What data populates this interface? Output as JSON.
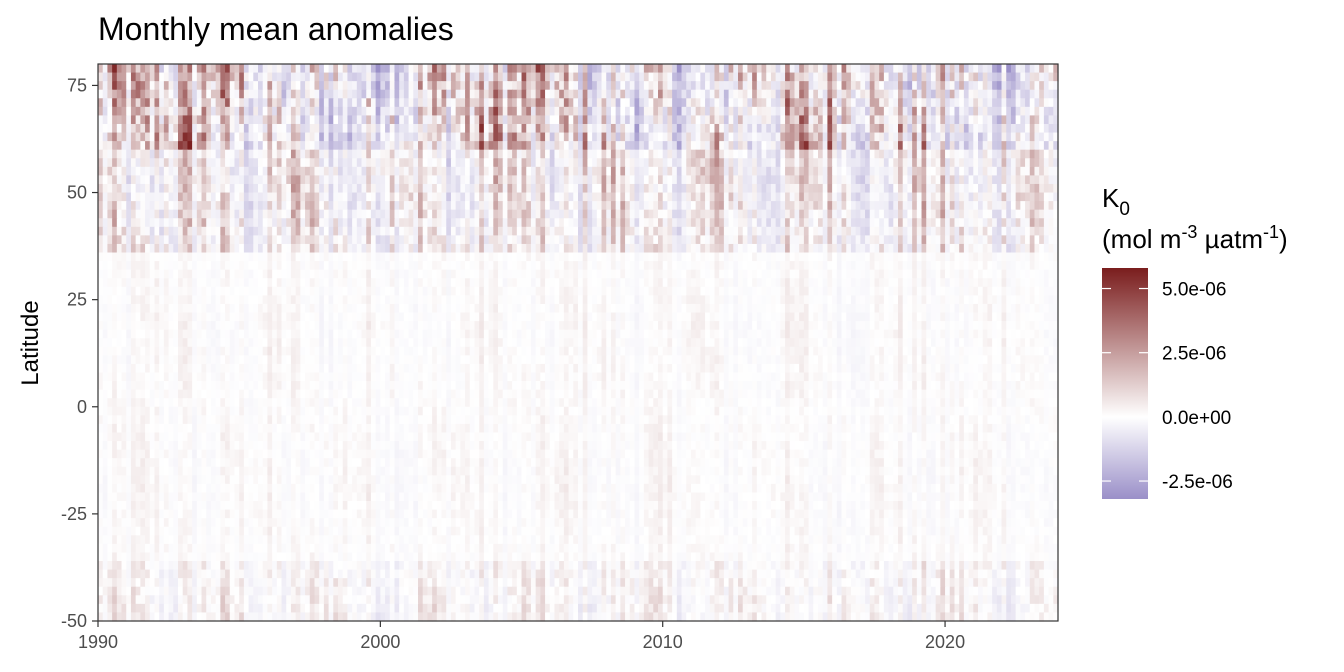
{
  "chart_data": {
    "type": "heatmap",
    "title": "Monthly mean anomalies",
    "xlabel": "",
    "ylabel": "Latitude",
    "xlim": [
      1990,
      2024
    ],
    "ylim": [
      -50,
      80
    ],
    "x_ticks": [
      "1990",
      "2000",
      "2010",
      "2020"
    ],
    "y_ticks": [
      "75",
      "50",
      "25",
      "0",
      "-25",
      "-50"
    ],
    "grid": false,
    "colorbar": {
      "title_main": "K",
      "title_sub": "0",
      "unit_open": "(mol m",
      "unit_exp1": "-3",
      "unit_mid": " µatm",
      "unit_exp2": "-1",
      "unit_close": ")",
      "range": [
        -3.2e-06,
        5.8e-06
      ],
      "ticks": [
        "5.0e-06",
        "2.5e-06",
        "0.0e+00",
        "-2.5e-06"
      ],
      "colors": {
        "high": "#7a1d1d",
        "mid": "#ffffff",
        "low": "#9a8fc8"
      },
      "placement": "right"
    },
    "notes_shown": []
  }
}
